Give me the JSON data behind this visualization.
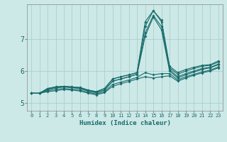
{
  "xlabel": "Humidex (Indice chaleur)",
  "ylabel": "",
  "background_color": "#cce9e7",
  "grid_color": "#aacfcd",
  "line_color": "#1a6b6b",
  "xlim": [
    -0.5,
    23.5
  ],
  "ylim": [
    4.75,
    8.1
  ],
  "xticks": [
    0,
    1,
    2,
    3,
    4,
    5,
    6,
    7,
    8,
    9,
    10,
    11,
    12,
    13,
    14,
    15,
    16,
    17,
    18,
    19,
    20,
    21,
    22,
    23
  ],
  "yticks": [
    5,
    6,
    7
  ],
  "lines": [
    [
      5.3,
      5.3,
      5.45,
      5.5,
      5.52,
      5.5,
      5.48,
      5.4,
      5.35,
      5.45,
      5.75,
      5.82,
      5.88,
      5.95,
      7.55,
      7.9,
      7.6,
      6.15,
      5.95,
      6.05,
      6.12,
      6.18,
      6.2,
      6.32
    ],
    [
      5.3,
      5.3,
      5.45,
      5.5,
      5.52,
      5.5,
      5.48,
      5.4,
      5.35,
      5.45,
      5.75,
      5.82,
      5.88,
      5.95,
      7.4,
      7.9,
      7.55,
      6.1,
      5.9,
      6.0,
      6.08,
      6.15,
      6.18,
      6.28
    ],
    [
      5.3,
      5.3,
      5.42,
      5.47,
      5.5,
      5.48,
      5.45,
      5.37,
      5.32,
      5.4,
      5.68,
      5.75,
      5.82,
      5.9,
      7.2,
      7.75,
      7.4,
      6.05,
      5.82,
      5.92,
      6.0,
      6.08,
      6.12,
      6.22
    ],
    [
      5.3,
      5.3,
      5.42,
      5.47,
      5.5,
      5.48,
      5.45,
      5.37,
      5.32,
      5.4,
      5.68,
      5.75,
      5.82,
      5.9,
      7.1,
      7.7,
      7.3,
      6.0,
      5.78,
      5.88,
      5.97,
      6.05,
      6.1,
      6.2
    ],
    [
      5.3,
      5.3,
      5.38,
      5.42,
      5.45,
      5.43,
      5.4,
      5.33,
      5.28,
      5.35,
      5.58,
      5.65,
      5.72,
      5.8,
      5.95,
      5.88,
      5.92,
      5.92,
      5.72,
      5.82,
      5.9,
      5.97,
      6.03,
      6.13
    ],
    [
      5.3,
      5.3,
      5.35,
      5.38,
      5.42,
      5.4,
      5.37,
      5.3,
      5.25,
      5.32,
      5.52,
      5.6,
      5.67,
      5.75,
      5.82,
      5.78,
      5.82,
      5.85,
      5.68,
      5.78,
      5.87,
      5.94,
      6.0,
      6.1
    ]
  ]
}
